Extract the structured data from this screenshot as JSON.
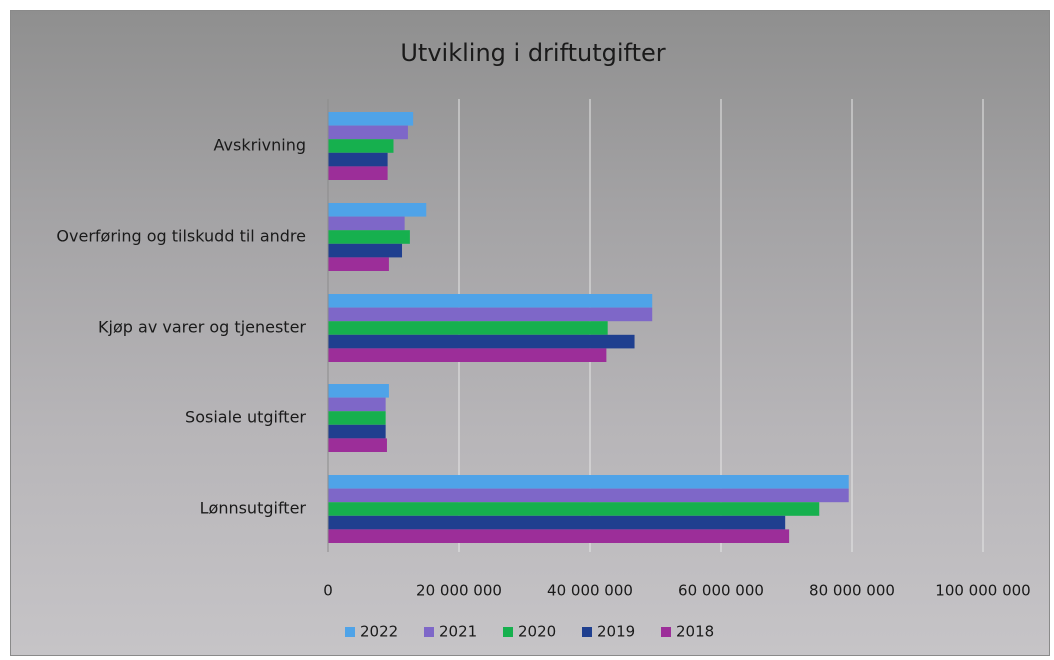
{
  "chart_data": {
    "type": "bar",
    "orientation": "horizontal",
    "title": "Utvikling i driftutgifter",
    "xlabel": "",
    "ylabel": "",
    "categories": [
      "Avskrivning",
      "Overføring og tilskudd til andre",
      "Kjøp av varer og tjenester",
      "Sosiale utgifter",
      "Lønnsutgifter"
    ],
    "series": [
      {
        "name": "2022",
        "color": "#4fa3e8",
        "values": [
          13000000,
          15000000,
          49500000,
          9300000,
          79500000
        ]
      },
      {
        "name": "2021",
        "color": "#7e67c8",
        "values": [
          12200000,
          11700000,
          49500000,
          8800000,
          79500000
        ]
      },
      {
        "name": "2020",
        "color": "#16b04e",
        "values": [
          10000000,
          12500000,
          42700000,
          8800000,
          75000000
        ]
      },
      {
        "name": "2019",
        "color": "#1f3f8f",
        "values": [
          9100000,
          11300000,
          46800000,
          8800000,
          69800000
        ]
      },
      {
        "name": "2018",
        "color": "#9c2e99",
        "values": [
          9100000,
          9300000,
          42500000,
          9000000,
          70400000
        ]
      }
    ],
    "xlim": [
      0,
      100000000
    ],
    "xticks": [
      0,
      20000000,
      40000000,
      60000000,
      80000000,
      100000000
    ],
    "xtick_labels": [
      "0",
      "20 000 000",
      "40 000 000",
      "60 000 000",
      "80 000 000",
      "100 000 000"
    ],
    "grid": "vertical",
    "legend_position": "bottom"
  }
}
